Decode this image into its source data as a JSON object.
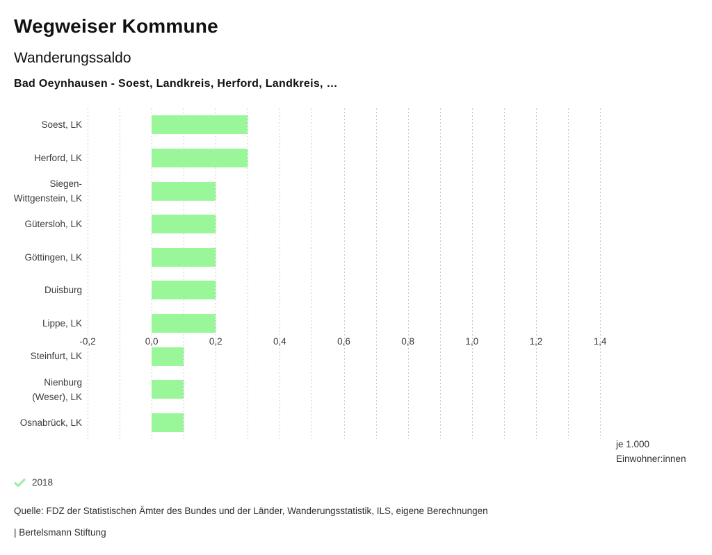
{
  "header": {
    "title": "Wegweiser Kommune",
    "subtitle": "Wanderungssaldo",
    "comparison": "Bad Oeynhausen - Soest, Landkreis, Herford, Landkreis, …"
  },
  "chart_data": {
    "type": "bar",
    "orientation": "horizontal",
    "title": "Wanderungssaldo",
    "categories": [
      "Soest, LK",
      "Herford, LK",
      "Siegen-Wittgenstein, LK",
      "Gütersloh, LK",
      "Göttingen, LK",
      "Duisburg",
      "Lippe, LK",
      "Steinfurt, LK",
      "Nienburg (Weser), LK",
      "Osnabrück, LK"
    ],
    "series": [
      {
        "name": "2018",
        "values": [
          0.3,
          0.3,
          0.2,
          0.2,
          0.2,
          0.2,
          0.2,
          0.1,
          0.1,
          0.1
        ]
      }
    ],
    "xlim": [
      -0.2,
      1.4
    ],
    "grid_step": 0.1,
    "ticks": [
      -0.2,
      0.0,
      0.2,
      0.4,
      0.6,
      0.8,
      1.0,
      1.2,
      1.4
    ],
    "tick_labels": [
      "-0,2",
      "0,0",
      "0,2",
      "0,4",
      "0,6",
      "0,8",
      "1,0",
      "1,2",
      "1,4"
    ],
    "unit_label_lines": [
      "je 1.000",
      "Einwohner:innen"
    ],
    "grid_on": true,
    "legend_position": "bottom-left",
    "colors": {
      "bar": "#99f799",
      "grid": "#c7c7c7",
      "legend_check": "#a3eda3"
    }
  },
  "legend": {
    "label": "2018"
  },
  "footer": {
    "source": "Quelle: FDZ der Statistischen Ämter des Bundes und der Länder, Wanderungsstatistik, ILS, eigene Berechnungen",
    "attribution": "| Bertelsmann Stiftung"
  }
}
